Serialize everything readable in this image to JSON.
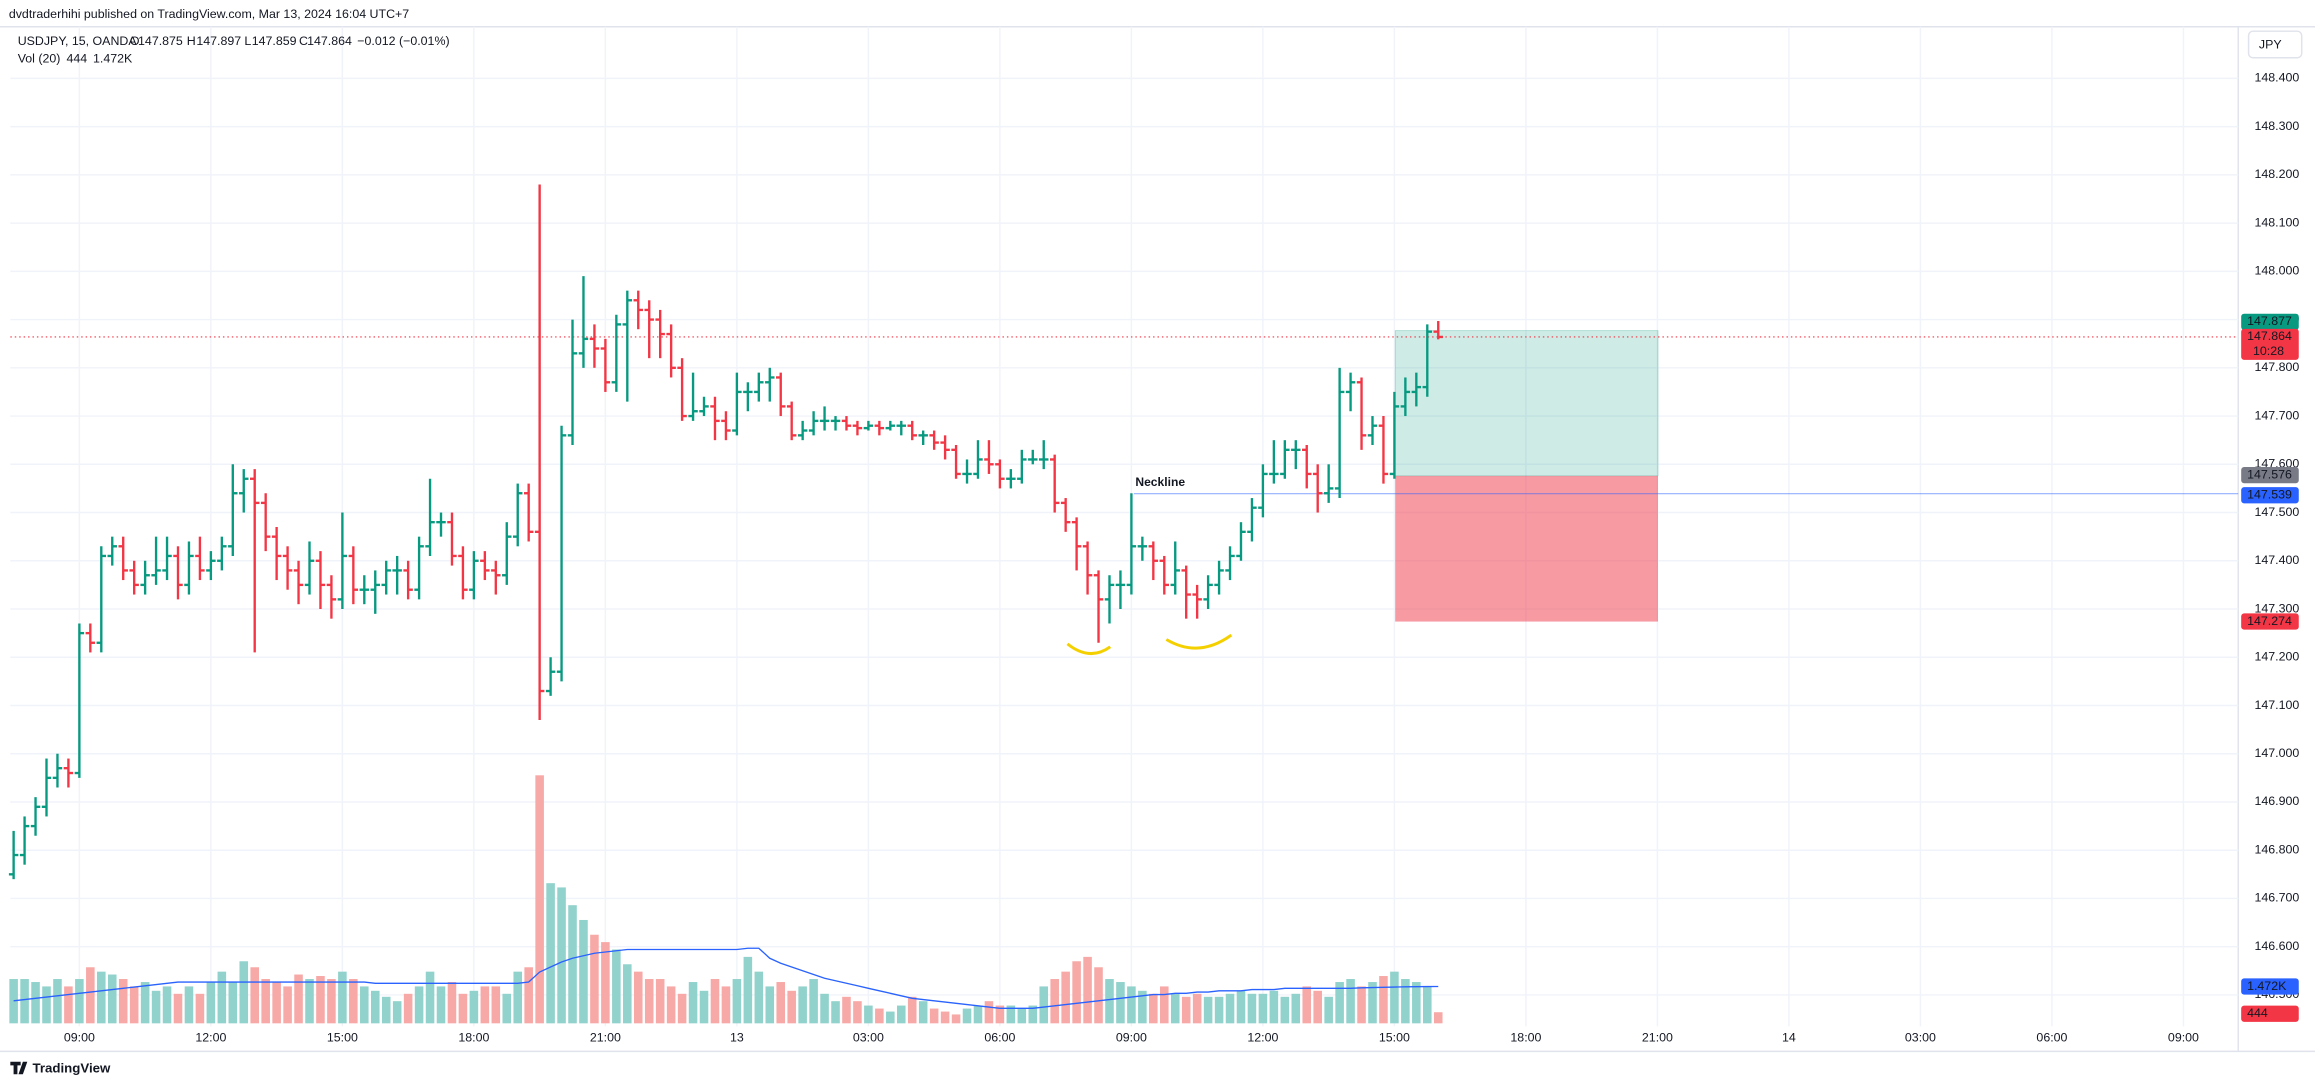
{
  "header": {
    "published": "dvdtraderhihi published on TradingView.com, Mar 13, 2024 16:04 UTC+7",
    "symbol": "USDJPY, 15, OANDA",
    "ohlc_letters": [
      "O",
      "H",
      "L",
      "C"
    ],
    "change": "−0.012 (−0.01%)",
    "volume_study": "Vol (20)",
    "currency": "JPY",
    "countdown": "10:28",
    "annotation": "Neckline",
    "footer": "TradingView"
  },
  "chart_data": {
    "type": "ohlc",
    "up_color": "#089981",
    "down_color": "#f23645",
    "volume_up_color": "#92d2cc",
    "volume_down_color": "#f7a9a7",
    "volume_ma_color": "#2962ff",
    "grid": true,
    "ylim": [
      146.435,
      148.507
    ],
    "xlim": [
      -0.3,
      203
    ],
    "yticks": [
      {
        "value": 148.4,
        "label": "148.400"
      },
      {
        "value": 148.3,
        "label": "148.300"
      },
      {
        "value": 148.2,
        "label": "148.200"
      },
      {
        "value": 148.1,
        "label": "148.100"
      },
      {
        "value": 148.0,
        "label": "148.000"
      },
      {
        "value": 147.9,
        "label": "147.900"
      },
      {
        "value": 147.8,
        "label": "147.800"
      },
      {
        "value": 147.7,
        "label": "147.700"
      },
      {
        "value": 147.6,
        "label": "147.600"
      },
      {
        "value": 147.5,
        "label": "147.500"
      },
      {
        "value": 147.4,
        "label": "147.400"
      },
      {
        "value": 147.3,
        "label": "147.300"
      },
      {
        "value": 147.2,
        "label": "147.200"
      },
      {
        "value": 147.1,
        "label": "147.100"
      },
      {
        "value": 147.0,
        "label": "147.000"
      },
      {
        "value": 146.9,
        "label": "146.900"
      },
      {
        "value": 146.8,
        "label": "146.800"
      },
      {
        "value": 146.7,
        "label": "146.700"
      },
      {
        "value": 146.6,
        "label": "146.600"
      },
      {
        "value": 146.5,
        "label": "146.500"
      }
    ],
    "xticks": [
      {
        "value": 6,
        "label": "09:00"
      },
      {
        "value": 18,
        "label": "12:00"
      },
      {
        "value": 30,
        "label": "15:00"
      },
      {
        "value": 42,
        "label": "18:00"
      },
      {
        "value": 54,
        "label": "21:00"
      },
      {
        "value": 66,
        "label": "13"
      },
      {
        "value": 78,
        "label": "03:00"
      },
      {
        "value": 90,
        "label": "06:00"
      },
      {
        "value": 102,
        "label": "09:00"
      },
      {
        "value": 114,
        "label": "12:00"
      },
      {
        "value": 126,
        "label": "15:00"
      },
      {
        "value": 138,
        "label": "18:00"
      },
      {
        "value": 150,
        "label": "21:00"
      },
      {
        "value": 162,
        "label": "14"
      },
      {
        "value": 174,
        "label": "03:00"
      },
      {
        "value": 186,
        "label": "06:00"
      },
      {
        "value": 198,
        "label": "09:00"
      }
    ],
    "open": [
      146.75,
      146.79,
      146.85,
      146.89,
      146.95,
      146.97,
      146.96,
      147.25,
      147.23,
      147.41,
      147.43,
      147.38,
      147.35,
      147.37,
      147.38,
      147.41,
      147.35,
      147.41,
      147.38,
      147.4,
      147.43,
      147.54,
      147.57,
      147.52,
      147.45,
      147.41,
      147.38,
      147.35,
      147.4,
      147.35,
      147.32,
      147.41,
      147.34,
      147.34,
      147.35,
      147.38,
      147.38,
      147.34,
      147.43,
      147.48,
      147.48,
      147.41,
      147.34,
      147.4,
      147.38,
      147.37,
      147.45,
      147.54,
      147.46,
      147.13,
      147.17,
      147.66,
      147.83,
      147.86,
      147.84,
      147.77,
      147.89,
      147.94,
      147.92,
      147.9,
      147.87,
      147.8,
      147.7,
      147.71,
      147.72,
      147.69,
      147.67,
      147.75,
      147.75,
      147.77,
      147.78,
      147.72,
      147.66,
      147.67,
      147.69,
      147.69,
      147.69,
      147.68,
      147.675,
      147.68,
      147.675,
      147.68,
      147.68,
      147.66,
      147.66,
      147.645,
      147.63,
      147.58,
      147.58,
      147.61,
      147.6,
      147.57,
      147.57,
      147.61,
      147.61,
      147.61,
      147.52,
      147.48,
      147.43,
      147.37,
      147.32,
      147.35,
      147.35,
      147.43,
      147.43,
      147.4,
      147.35,
      147.38,
      147.33,
      147.32,
      147.35,
      147.38,
      147.41,
      147.46,
      147.51,
      147.58,
      147.58,
      147.63,
      147.63,
      147.58,
      147.54,
      147.55,
      147.75,
      147.77,
      147.66,
      147.68,
      147.58,
      147.72,
      147.75,
      147.76,
      147.875
    ],
    "high": [
      146.84,
      146.87,
      146.91,
      146.99,
      147.0,
      146.99,
      147.27,
      147.27,
      147.43,
      147.45,
      147.45,
      147.4,
      147.4,
      147.45,
      147.45,
      147.43,
      147.44,
      147.45,
      147.42,
      147.45,
      147.6,
      147.59,
      147.59,
      147.54,
      147.47,
      147.43,
      147.4,
      147.44,
      147.42,
      147.37,
      147.5,
      147.43,
      147.37,
      147.38,
      147.4,
      147.41,
      147.4,
      147.45,
      147.57,
      147.5,
      147.5,
      147.43,
      147.42,
      147.42,
      147.4,
      147.48,
      147.56,
      147.56,
      148.18,
      147.2,
      147.68,
      147.9,
      147.99,
      147.89,
      147.86,
      147.91,
      147.96,
      147.96,
      147.94,
      147.92,
      147.89,
      147.82,
      147.79,
      147.74,
      147.74,
      147.71,
      147.79,
      147.77,
      147.79,
      147.8,
      147.79,
      147.73,
      147.69,
      147.71,
      147.72,
      147.7,
      147.7,
      147.69,
      147.69,
      147.69,
      147.69,
      147.69,
      147.69,
      147.67,
      147.67,
      147.66,
      147.64,
      147.61,
      147.65,
      147.65,
      147.61,
      147.59,
      147.63,
      147.63,
      147.65,
      147.62,
      147.53,
      147.49,
      147.44,
      147.38,
      147.37,
      147.38,
      147.54,
      147.45,
      147.44,
      147.41,
      147.44,
      147.39,
      147.35,
      147.37,
      147.4,
      147.43,
      147.48,
      147.53,
      147.6,
      147.65,
      147.65,
      147.65,
      147.64,
      147.6,
      147.6,
      147.8,
      147.79,
      147.78,
      147.7,
      147.7,
      147.75,
      147.78,
      147.79,
      147.89,
      147.897
    ],
    "low": [
      146.74,
      146.77,
      146.83,
      146.87,
      146.93,
      146.93,
      146.95,
      147.21,
      147.21,
      147.39,
      147.36,
      147.33,
      147.33,
      147.35,
      147.36,
      147.32,
      147.33,
      147.36,
      147.36,
      147.38,
      147.41,
      147.5,
      147.21,
      147.42,
      147.36,
      147.34,
      147.31,
      147.33,
      147.3,
      147.28,
      147.3,
      147.31,
      147.31,
      147.29,
      147.33,
      147.33,
      147.32,
      147.32,
      147.41,
      147.45,
      147.39,
      147.32,
      147.32,
      147.36,
      147.33,
      147.35,
      147.43,
      147.44,
      147.07,
      147.12,
      147.15,
      147.64,
      147.8,
      147.8,
      147.75,
      147.75,
      147.73,
      147.88,
      147.82,
      147.82,
      147.78,
      147.69,
      147.69,
      147.7,
      147.65,
      147.65,
      147.66,
      147.71,
      147.73,
      147.73,
      147.7,
      147.65,
      147.65,
      147.66,
      147.67,
      147.67,
      147.67,
      147.66,
      147.67,
      147.66,
      147.67,
      147.66,
      147.65,
      147.64,
      147.63,
      147.61,
      147.57,
      147.56,
      147.57,
      147.58,
      147.55,
      147.55,
      147.56,
      147.6,
      147.59,
      147.5,
      147.46,
      147.38,
      147.33,
      147.23,
      147.27,
      147.3,
      147.33,
      147.4,
      147.36,
      147.33,
      147.33,
      147.28,
      147.28,
      147.3,
      147.33,
      147.36,
      147.4,
      147.44,
      147.49,
      147.56,
      147.57,
      147.59,
      147.55,
      147.5,
      147.52,
      147.53,
      147.71,
      147.63,
      147.64,
      147.56,
      147.57,
      147.7,
      147.72,
      147.74,
      147.859
    ],
    "close": [
      146.79,
      146.85,
      146.89,
      146.95,
      146.97,
      146.96,
      147.25,
      147.23,
      147.41,
      147.43,
      147.38,
      147.35,
      147.37,
      147.38,
      147.41,
      147.35,
      147.41,
      147.38,
      147.4,
      147.43,
      147.54,
      147.57,
      147.52,
      147.45,
      147.41,
      147.38,
      147.35,
      147.4,
      147.35,
      147.32,
      147.41,
      147.34,
      147.34,
      147.35,
      147.38,
      147.38,
      147.34,
      147.43,
      147.48,
      147.48,
      147.41,
      147.34,
      147.4,
      147.38,
      147.37,
      147.45,
      147.54,
      147.46,
      147.13,
      147.17,
      147.66,
      147.83,
      147.86,
      147.84,
      147.77,
      147.89,
      147.94,
      147.92,
      147.9,
      147.87,
      147.8,
      147.7,
      147.71,
      147.72,
      147.69,
      147.67,
      147.75,
      147.75,
      147.77,
      147.78,
      147.72,
      147.66,
      147.67,
      147.69,
      147.69,
      147.69,
      147.68,
      147.675,
      147.68,
      147.675,
      147.68,
      147.68,
      147.66,
      147.66,
      147.645,
      147.63,
      147.58,
      147.58,
      147.61,
      147.6,
      147.57,
      147.57,
      147.61,
      147.61,
      147.61,
      147.52,
      147.48,
      147.43,
      147.37,
      147.32,
      147.35,
      147.35,
      147.43,
      147.43,
      147.4,
      147.35,
      147.38,
      147.33,
      147.32,
      147.35,
      147.38,
      147.41,
      147.46,
      147.51,
      147.58,
      147.58,
      147.63,
      147.63,
      147.58,
      147.54,
      147.55,
      147.75,
      147.77,
      147.66,
      147.68,
      147.58,
      147.72,
      147.75,
      147.76,
      147.875,
      147.864
    ],
    "volume": [
      1770,
      1770,
      1650,
      1475,
      1770,
      1475,
      1770,
      2240,
      2065,
      1950,
      1770,
      1475,
      1650,
      1300,
      1475,
      1180,
      1475,
      1180,
      1650,
      2065,
      1650,
      2480,
      2240,
      1770,
      1650,
      1475,
      1950,
      1770,
      1890,
      1770,
      2065,
      1770,
      1475,
      1300,
      1060,
      885,
      1180,
      1475,
      2065,
      1475,
      1650,
      1180,
      1300,
      1475,
      1475,
      1180,
      2065,
      2240,
      9910,
      5600,
      5430,
      4720,
      4130,
      3540,
      3245,
      2950,
      2360,
      2065,
      1770,
      1770,
      1475,
      1180,
      1650,
      1300,
      1770,
      1475,
      1770,
      2655,
      2065,
      1475,
      1650,
      1300,
      1475,
      1770,
      1180,
      885,
      1060,
      885,
      710,
      590,
      470,
      710,
      1060,
      885,
      590,
      470,
      355,
      590,
      710,
      885,
      710,
      710,
      590,
      710,
      1475,
      1770,
      2065,
      2480,
      2655,
      2240,
      1770,
      1650,
      1475,
      1300,
      1180,
      1475,
      1180,
      1060,
      1180,
      1060,
      1060,
      1180,
      1300,
      1180,
      1180,
      1300,
      1060,
      1180,
      1475,
      1300,
      1060,
      1650,
      1770,
      1475,
      1650,
      1890,
      2065,
      1770,
      1650,
      1475,
      444
    ],
    "volume_ma": [
      900,
      950,
      1000,
      1050,
      1100,
      1150,
      1200,
      1250,
      1300,
      1350,
      1400,
      1450,
      1500,
      1550,
      1600,
      1650,
      1650,
      1650,
      1650,
      1650,
      1650,
      1650,
      1650,
      1650,
      1650,
      1650,
      1650,
      1650,
      1650,
      1650,
      1650,
      1650,
      1650,
      1600,
      1600,
      1600,
      1600,
      1600,
      1600,
      1600,
      1600,
      1600,
      1600,
      1600,
      1600,
      1600,
      1600,
      1650,
      2050,
      2250,
      2450,
      2600,
      2700,
      2800,
      2850,
      2900,
      2950,
      2950,
      2950,
      2950,
      2950,
      2950,
      2950,
      2950,
      2950,
      2950,
      2950,
      3000,
      3000,
      2600,
      2400,
      2250,
      2100,
      1950,
      1800,
      1700,
      1600,
      1500,
      1400,
      1300,
      1200,
      1100,
      1000,
      950,
      900,
      850,
      800,
      750,
      700,
      650,
      600,
      600,
      600,
      600,
      650,
      700,
      750,
      800,
      850,
      900,
      950,
      1000,
      1050,
      1100,
      1150,
      1150,
      1200,
      1200,
      1250,
      1250,
      1300,
      1300,
      1300,
      1350,
      1350,
      1350,
      1400,
      1400,
      1400,
      1400,
      1400,
      1400,
      1400,
      1420,
      1430,
      1440,
      1450,
      1460,
      1465,
      1470,
      1472
    ],
    "volume_ma_label": "1.472K",
    "neckline": 147.539,
    "position": {
      "entry": 147.576,
      "target": 147.877,
      "stop": 147.274
    }
  }
}
